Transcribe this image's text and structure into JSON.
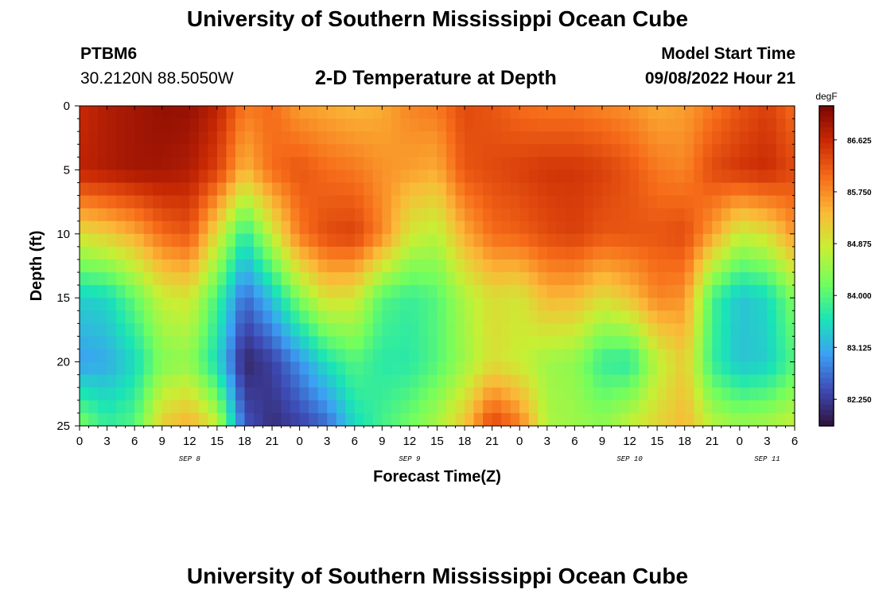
{
  "header": {
    "title": "University of Southern Mississippi Ocean Cube",
    "station_id": "PTBM6",
    "station_coords": "30.2120N  88.5050W",
    "subtitle": "2-D Temperature at Depth",
    "start_label": "Model Start Time",
    "start_value": "09/08/2022 Hour 21"
  },
  "footer": {
    "title": "University of Southern Mississippi Ocean Cube"
  },
  "chart_data": {
    "type": "heatmap",
    "title": "2-D Temperature at Depth",
    "xlabel": "Forecast Time(Z)",
    "ylabel": "Depth (ft)",
    "xlim": [
      0,
      78
    ],
    "ylim": [
      0,
      25
    ],
    "x_ticks": [
      {
        "hour": 0,
        "label": "0"
      },
      {
        "hour": 3,
        "label": "3"
      },
      {
        "hour": 6,
        "label": "6"
      },
      {
        "hour": 9,
        "label": "9"
      },
      {
        "hour": 12,
        "label": "12"
      },
      {
        "hour": 15,
        "label": "15"
      },
      {
        "hour": 18,
        "label": "18"
      },
      {
        "hour": 21,
        "label": "21"
      },
      {
        "hour": 24,
        "label": "0"
      },
      {
        "hour": 27,
        "label": "3"
      },
      {
        "hour": 30,
        "label": "6"
      },
      {
        "hour": 33,
        "label": "9"
      },
      {
        "hour": 36,
        "label": "12"
      },
      {
        "hour": 39,
        "label": "15"
      },
      {
        "hour": 42,
        "label": "18"
      },
      {
        "hour": 45,
        "label": "21"
      },
      {
        "hour": 48,
        "label": "0"
      },
      {
        "hour": 51,
        "label": "3"
      },
      {
        "hour": 54,
        "label": "6"
      },
      {
        "hour": 57,
        "label": "9"
      },
      {
        "hour": 60,
        "label": "12"
      },
      {
        "hour": 63,
        "label": "15"
      },
      {
        "hour": 66,
        "label": "18"
      },
      {
        "hour": 69,
        "label": "21"
      },
      {
        "hour": 72,
        "label": "0"
      },
      {
        "hour": 75,
        "label": "3"
      },
      {
        "hour": 78,
        "label": "6"
      }
    ],
    "y_ticks": [
      0,
      5,
      10,
      15,
      20,
      25
    ],
    "date_labels": [
      {
        "hour": 12,
        "label": "SEP 8"
      },
      {
        "hour": 36,
        "label": "SEP 9"
      },
      {
        "hour": 60,
        "label": "SEP 10"
      },
      {
        "hour": 75,
        "label": "SEP 11"
      }
    ],
    "colorbar": {
      "units": "degF",
      "min": 81.8,
      "max": 87.2,
      "ticks": [
        "82.250",
        "83.125",
        "84.000",
        "84.875",
        "85.750",
        "86.625"
      ],
      "colors": [
        "#30123b",
        "#3e4ab4",
        "#3ca0f4",
        "#1ae4b6",
        "#72fe5e",
        "#c8ef34",
        "#fbb938",
        "#f66b19",
        "#ca2a04",
        "#7a0403"
      ]
    },
    "depths_ft": [
      0,
      5,
      10,
      15,
      20,
      25
    ],
    "profiles": [
      {
        "hour": 0,
        "temps": [
          86.6,
          86.7,
          85.0,
          83.4,
          83.0,
          84.3
        ]
      },
      {
        "hour": 3,
        "temps": [
          86.8,
          86.8,
          85.2,
          83.5,
          83.1,
          83.8
        ]
      },
      {
        "hour": 6,
        "temps": [
          86.9,
          86.9,
          85.5,
          84.1,
          83.5,
          84.0
        ]
      },
      {
        "hour": 9,
        "temps": [
          87.0,
          86.9,
          86.0,
          84.8,
          84.3,
          85.2
        ]
      },
      {
        "hour": 12,
        "temps": [
          87.0,
          86.8,
          86.2,
          84.9,
          84.4,
          85.5
        ]
      },
      {
        "hour": 15,
        "temps": [
          86.7,
          86.4,
          85.0,
          83.9,
          83.5,
          84.8
        ]
      },
      {
        "hour": 18,
        "temps": [
          85.9,
          85.4,
          83.7,
          82.6,
          82.0,
          82.5
        ]
      },
      {
        "hour": 21,
        "temps": [
          86.0,
          86.0,
          84.8,
          83.3,
          82.3,
          82.1
        ]
      },
      {
        "hour": 24,
        "temps": [
          85.6,
          86.2,
          85.9,
          84.3,
          82.9,
          82.3
        ]
      },
      {
        "hour": 27,
        "temps": [
          85.5,
          86.0,
          86.3,
          85.0,
          83.6,
          82.6
        ]
      },
      {
        "hour": 30,
        "temps": [
          85.4,
          85.9,
          86.4,
          84.9,
          84.0,
          83.5
        ]
      },
      {
        "hour": 33,
        "temps": [
          85.5,
          85.7,
          85.8,
          84.0,
          83.7,
          83.9
        ]
      },
      {
        "hour": 36,
        "temps": [
          85.8,
          85.6,
          84.9,
          83.8,
          83.7,
          84.2
        ]
      },
      {
        "hour": 39,
        "temps": [
          85.9,
          85.5,
          84.7,
          84.0,
          84.0,
          84.6
        ]
      },
      {
        "hour": 42,
        "temps": [
          86.3,
          86.2,
          85.5,
          84.6,
          84.5,
          85.3
        ]
      },
      {
        "hour": 45,
        "temps": [
          86.2,
          86.3,
          86.0,
          85.0,
          85.0,
          86.4
        ]
      },
      {
        "hour": 48,
        "temps": [
          86.0,
          86.4,
          86.1,
          84.9,
          84.8,
          85.9
        ]
      },
      {
        "hour": 51,
        "temps": [
          85.9,
          86.5,
          86.3,
          85.4,
          84.5,
          84.6
        ]
      },
      {
        "hour": 54,
        "temps": [
          85.9,
          86.5,
          86.4,
          85.4,
          84.4,
          84.5
        ]
      },
      {
        "hour": 57,
        "temps": [
          85.8,
          86.4,
          86.2,
          85.0,
          83.8,
          84.4
        ]
      },
      {
        "hour": 60,
        "temps": [
          85.7,
          86.2,
          86.2,
          85.3,
          83.7,
          84.8
        ]
      },
      {
        "hour": 63,
        "temps": [
          85.5,
          85.9,
          86.2,
          85.8,
          84.7,
          85.1
        ]
      },
      {
        "hour": 66,
        "temps": [
          85.6,
          85.8,
          86.3,
          85.7,
          85.2,
          85.4
        ]
      },
      {
        "hour": 69,
        "temps": [
          85.9,
          86.3,
          85.6,
          83.9,
          83.8,
          84.7
        ]
      },
      {
        "hour": 72,
        "temps": [
          86.2,
          86.5,
          84.8,
          83.3,
          83.3,
          84.5
        ]
      },
      {
        "hour": 75,
        "temps": [
          86.4,
          86.6,
          85.0,
          83.5,
          83.4,
          84.6
        ]
      },
      {
        "hour": 78,
        "temps": [
          86.0,
          86.3,
          85.7,
          84.3,
          84.0,
          84.8
        ]
      }
    ]
  }
}
